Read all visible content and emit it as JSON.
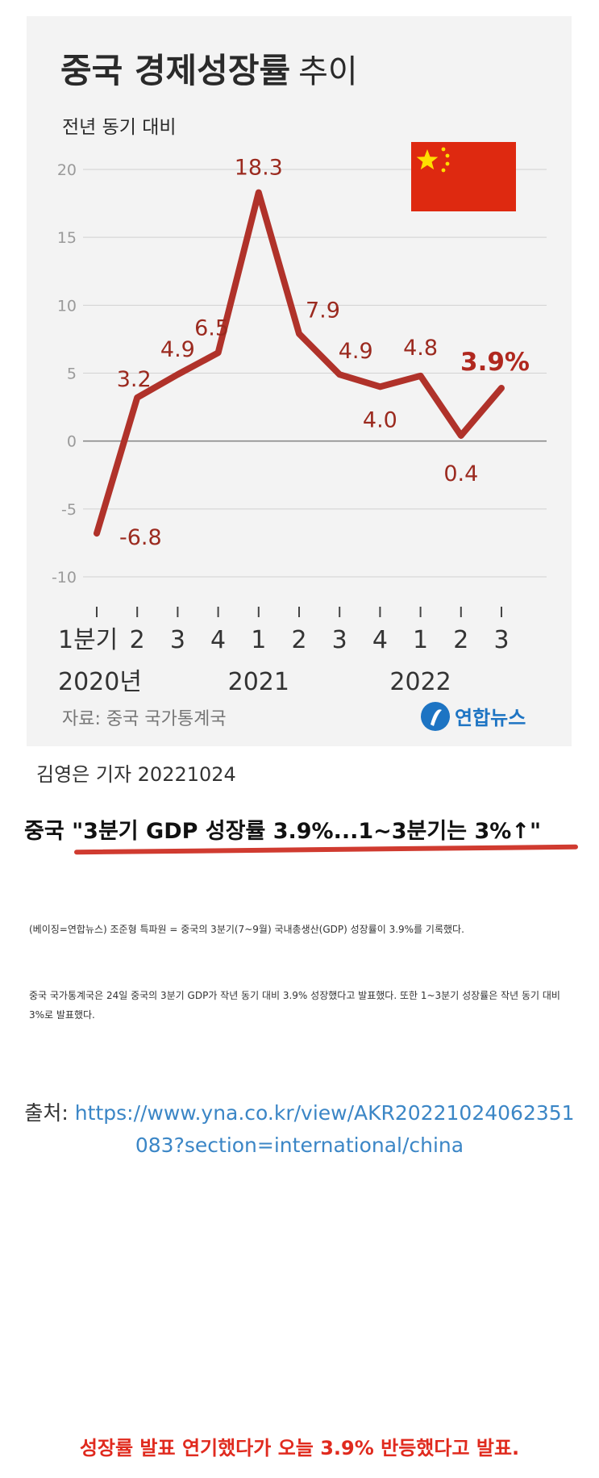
{
  "chart_data": {
    "type": "line",
    "title": "중국 경제성장률",
    "title_suffix": "추이",
    "subtitle": "전년 동기 대비",
    "ylim": [
      -10,
      20
    ],
    "yticks": [
      20,
      15,
      10,
      5,
      0,
      -5,
      -10
    ],
    "grid": true,
    "series": [
      {
        "values": [
          -6.8,
          3.2,
          4.9,
          6.5,
          18.3,
          7.9,
          4.9,
          4.0,
          4.8,
          0.4,
          3.9
        ],
        "labels": [
          "-6.8",
          "3.2",
          "4.9",
          "6.5",
          "18.3",
          "7.9",
          "4.9",
          "4.0",
          "4.8",
          "0.4",
          "3.9%"
        ],
        "color": "#b0322a"
      }
    ],
    "categories": [
      "1분기",
      "2",
      "3",
      "4",
      "1",
      "2",
      "3",
      "4",
      "1",
      "2",
      "3"
    ],
    "year_labels": [
      "2020년",
      "2021",
      "2022"
    ],
    "source_note": "자료: 중국 국가통계국",
    "logo_text": "연합뉴스",
    "flag_colors": {
      "red": "#de2910",
      "yellow": "#ffde00"
    }
  },
  "reporter": "김영은 기자  20221024",
  "headline": {
    "prefix": "중국 ",
    "quote": "\"3분기 GDP 성장률 3.9%...1~3분기는 3%↑\""
  },
  "article": {
    "paragraph1": "(베이징=연합뉴스) 조준형 특파원 = 중국의 3분기(7~9월) 국내총생산(GDP) 성장률이 3.9%를 기록했다.",
    "paragraph2": "중국 국가통계국은 24일 중국의 3분기 GDP가 작년 동기 대비 3.9% 성장했다고 발표했다. 또한 1~3분기 성장률은 작년 동기 대비 3%로 발표했다."
  },
  "source": {
    "label": "출처: ",
    "url_line1": "https://www.yna.co.kr/view/AKR20221024062351",
    "url_line2": "083?section=international/china"
  },
  "footer": "성장률 발표 연기했다가 오늘 3.9% 반등했다고 발표."
}
